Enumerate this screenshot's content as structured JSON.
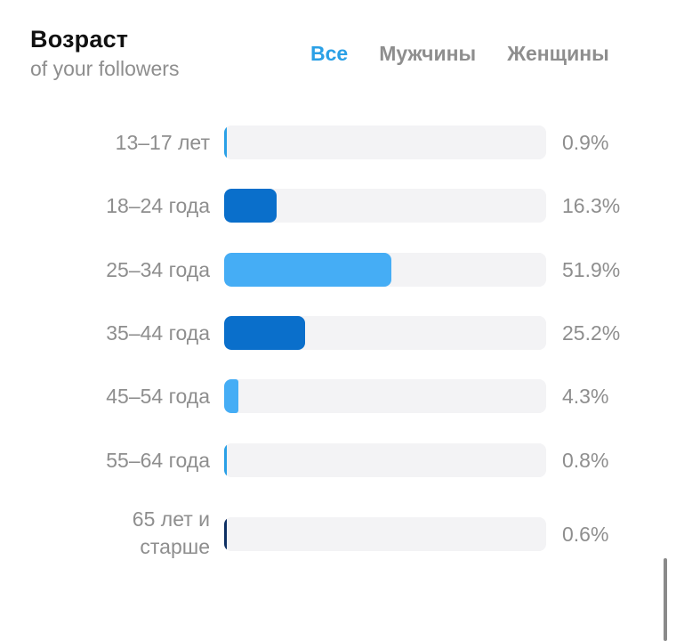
{
  "header": {
    "title": "Возраст",
    "subtitle": "of your followers"
  },
  "tabs": [
    {
      "label": "Все",
      "active": true
    },
    {
      "label": "Мужчины",
      "active": false
    },
    {
      "label": "Женщины",
      "active": false
    }
  ],
  "colors": {
    "accent": "#2aa0e6",
    "bar_dark": "#0a6fcb",
    "bar_light": "#45adf5",
    "bar_darkest": "#0d2f63",
    "track": "#f3f3f5",
    "text_muted": "#8e8e8e"
  },
  "chart_data": {
    "type": "bar",
    "orientation": "horizontal",
    "categories": [
      "13–17 лет",
      "18–24 года",
      "25–34 года",
      "35–44 года",
      "45–54 года",
      "55–64 года",
      "65 лет и старше"
    ],
    "values": [
      0.9,
      16.3,
      51.9,
      25.2,
      4.3,
      0.8,
      0.6
    ],
    "value_labels": [
      "0.9%",
      "16.3%",
      "51.9%",
      "25.2%",
      "4.3%",
      "0.8%",
      "0.6%"
    ],
    "bar_colors": [
      "#2aa0e6",
      "#0a6fcb",
      "#45adf5",
      "#0a6fcb",
      "#45adf5",
      "#2aa0e6",
      "#0d2f63"
    ],
    "xlim": [
      0,
      100
    ],
    "unit": "%",
    "grid": false,
    "legend": "none"
  }
}
